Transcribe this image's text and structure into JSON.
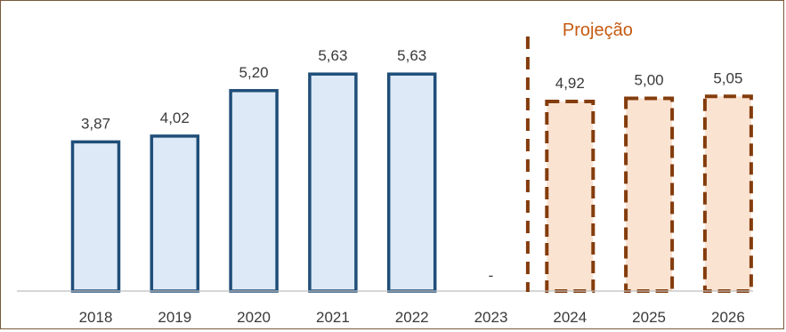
{
  "chart_data": {
    "type": "bar",
    "categories": [
      "2018",
      "2019",
      "2020",
      "2021",
      "2022",
      "2023",
      "2024",
      "2025",
      "2026"
    ],
    "values": [
      3.87,
      4.02,
      5.2,
      5.63,
      5.63,
      null,
      4.92,
      5.0,
      5.05
    ],
    "value_labels": [
      "3,87",
      "4,02",
      "5,20",
      "5,63",
      "5,63",
      "-",
      "4,92",
      "5,00",
      "5,05"
    ],
    "projection_label": "Projeção",
    "projection_start_index": 6,
    "ylim": [
      0,
      6.5
    ],
    "grid": false,
    "legend": "none",
    "colors": {
      "historic_fill": "#dde9f6",
      "historic_fill_last": "#d7e0f2",
      "historic_stroke": "#1f4e79",
      "projection_fill": "#fbe3d2",
      "projection_stroke": "#843c0c",
      "projection_text": "#c55a11",
      "axis": "#bfbfbf"
    }
  }
}
